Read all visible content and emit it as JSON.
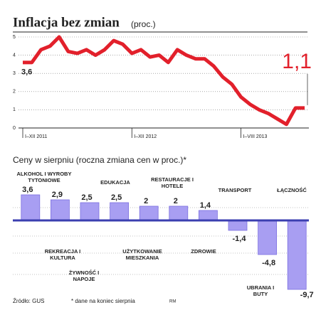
{
  "chart_data": [
    {
      "type": "line",
      "title": "Inflacja bez zmian",
      "subtitle": "(proc.)",
      "categories": [
        "I–XII 2011",
        null,
        null,
        null,
        null,
        null,
        null,
        null,
        null,
        null,
        null,
        null,
        "I–XII 2012",
        null,
        null,
        null,
        null,
        null,
        null,
        null,
        null,
        null,
        null,
        null,
        "I–VIII 2013",
        null,
        null,
        null,
        null,
        null,
        null,
        null
      ],
      "series": [
        {
          "color": "#e2202b",
          "values": [
            3.6,
            3.6,
            4.3,
            4.5,
            5.0,
            4.2,
            4.1,
            4.3,
            4.0,
            4.3,
            4.8,
            4.6,
            4.1,
            4.3,
            3.9,
            4.0,
            3.6,
            4.3,
            4.0,
            3.8,
            3.8,
            3.4,
            2.8,
            2.4,
            1.7,
            1.3,
            1.0,
            0.8,
            0.5,
            0.2,
            1.1,
            1.1
          ],
          "value_labels": [
            "3,6",
            null,
            null,
            null,
            null,
            null,
            null,
            null,
            null,
            null,
            null,
            null,
            null,
            null,
            null,
            null,
            null,
            null,
            null,
            null,
            null,
            null,
            null,
            null,
            null,
            null,
            null,
            null,
            null,
            null,
            null,
            "1,1"
          ]
        }
      ],
      "ylim": [
        0,
        5
      ],
      "yticks": [
        0,
        1,
        2,
        3,
        4,
        5
      ],
      "grid": true
    },
    {
      "type": "bar",
      "title": "Ceny w sierpniu (roczna zmiana cen w proc.)*",
      "categories": [
        "ALKOHOL I WYROBY TYTONIOWE",
        "REKREACJA I KULTURA",
        "ŻYWNOŚĆ I NAPOJE",
        "EDUKACJA",
        "UŻYTKOWANIE MIESZKANIA",
        "RESTAURACJE I HOTELE",
        "ZDROWIE",
        "TRANSPORT",
        "UBRANIA I BUTY",
        "ŁĄCZNOŚĆ"
      ],
      "values": [
        3.6,
        2.9,
        2.5,
        2.5,
        2,
        2,
        1.4,
        -1.4,
        -4.8,
        -9.7
      ],
      "value_labels": [
        "3,6",
        "2,9",
        "2,5",
        "2,5",
        "2",
        "2",
        "1,4",
        "-1,4",
        "-4,8",
        "-9,7"
      ],
      "color": "#a89ef2",
      "ylim": [
        -10,
        4
      ]
    }
  ],
  "footer": {
    "source": "Źródło: GUS",
    "note": "* dane na koniec sierpnia",
    "credit": "RM"
  }
}
